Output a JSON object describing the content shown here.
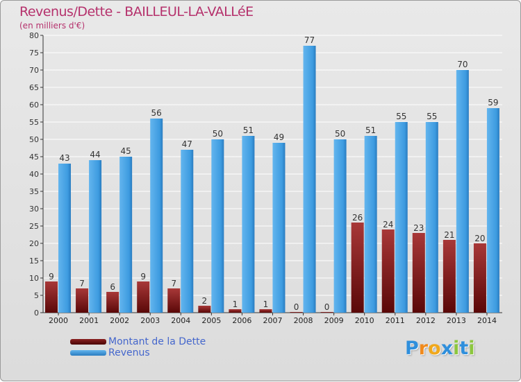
{
  "header": {
    "title": "Revenus/Dette - BAILLEUL-LA-VALLéE",
    "subtitle": "(en milliers d'€)"
  },
  "chart_data": {
    "type": "bar",
    "title": "Revenus/Dette - BAILLEUL-LA-VALLéE",
    "ylabel": "(en milliers d'€)",
    "xlabel": "",
    "categories": [
      "2000",
      "2001",
      "2002",
      "2003",
      "2004",
      "2005",
      "2006",
      "2007",
      "2008",
      "2009",
      "2010",
      "2011",
      "2012",
      "2013",
      "2014"
    ],
    "ylim": [
      0,
      80
    ],
    "yticks": [
      0,
      5,
      10,
      15,
      20,
      25,
      30,
      35,
      40,
      45,
      50,
      55,
      60,
      65,
      70,
      75,
      80
    ],
    "grid": true,
    "legend_position": "bottom-left",
    "series": [
      {
        "name": "Montant de la Dette",
        "color": "#7a1010",
        "values": [
          9,
          7,
          6,
          9,
          7,
          2,
          1,
          1,
          0,
          0,
          26,
          24,
          23,
          21,
          20
        ]
      },
      {
        "name": "Revenus",
        "color": "#3d9be0",
        "values": [
          43,
          44,
          45,
          56,
          47,
          50,
          51,
          49,
          77,
          50,
          51,
          55,
          55,
          70,
          59
        ]
      }
    ]
  },
  "legend": {
    "items": [
      {
        "label": "Montant de la Dette",
        "color": "#6a0f0f"
      },
      {
        "label": "Revenus",
        "color": "#3d9be0"
      }
    ]
  },
  "brand": {
    "letters": [
      "P",
      "r",
      "o",
      "x",
      "i",
      "t",
      "i"
    ],
    "colors": [
      "#2f8fdc",
      "#f08a1c",
      "#f0a81c",
      "#2f8fdc",
      "#8cc63e",
      "#2f8fdc",
      "#8cc63e"
    ]
  }
}
